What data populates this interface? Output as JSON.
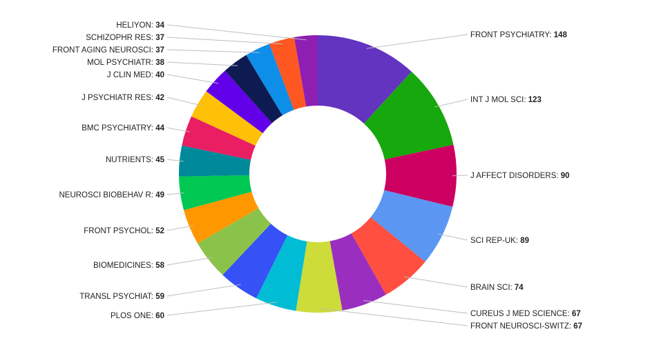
{
  "chart_data": {
    "type": "pie",
    "variant": "donut",
    "title": "",
    "label_separator": ": ",
    "slices": [
      {
        "label": "FRONT PSYCHIATRY",
        "value": 148,
        "color": "#6234c0",
        "side": "right"
      },
      {
        "label": "INT J MOL SCI",
        "value": 123,
        "color": "#16a80c",
        "side": "right"
      },
      {
        "label": "J AFFECT DISORDERS",
        "value": 90,
        "color": "#cc0060",
        "side": "right"
      },
      {
        "label": "SCI REP-UK",
        "value": 89,
        "color": "#5b96f2",
        "side": "right"
      },
      {
        "label": "BRAIN SCI",
        "value": 74,
        "color": "#ff4f40",
        "side": "right"
      },
      {
        "label": "CUREUS J MED SCIENCE",
        "value": 67,
        "color": "#9a2fbf",
        "side": "right"
      },
      {
        "label": "FRONT NEUROSCI-SWITZ",
        "value": 67,
        "color": "#cddc39",
        "side": "right"
      },
      {
        "label": "PLOS ONE",
        "value": 60,
        "color": "#00bcd4",
        "side": "left"
      },
      {
        "label": "TRANSL PSYCHIAT",
        "value": 59,
        "color": "#3651f5",
        "side": "left"
      },
      {
        "label": "BIOMEDICINES",
        "value": 58,
        "color": "#8bc34a",
        "side": "left"
      },
      {
        "label": "FRONT PSYCHOL",
        "value": 52,
        "color": "#ff9800",
        "side": "left"
      },
      {
        "label": "NEUROSCI BIOBEHAV R",
        "value": 49,
        "color": "#00c853",
        "side": "left"
      },
      {
        "label": "NUTRIENTS",
        "value": 45,
        "color": "#00899b",
        "side": "left"
      },
      {
        "label": "BMC PSYCHIATRY",
        "value": 44,
        "color": "#e91e63",
        "side": "left"
      },
      {
        "label": "J PSYCHIATR RES",
        "value": 42,
        "color": "#ffc107",
        "side": "left"
      },
      {
        "label": "J CLIN MED",
        "value": 40,
        "color": "#6200ea",
        "side": "left"
      },
      {
        "label": "MOL PSYCHIATR",
        "value": 38,
        "color": "#0d1b52",
        "side": "left"
      },
      {
        "label": "FRONT AGING NEUROSCI",
        "value": 37,
        "color": "#0d8ee8",
        "side": "left"
      },
      {
        "label": "SCHIZOPHR RES",
        "value": 37,
        "color": "#ff5722",
        "side": "left"
      },
      {
        "label": "HELIYON",
        "value": 34,
        "color": "#8e1fb3",
        "side": "left"
      }
    ]
  }
}
